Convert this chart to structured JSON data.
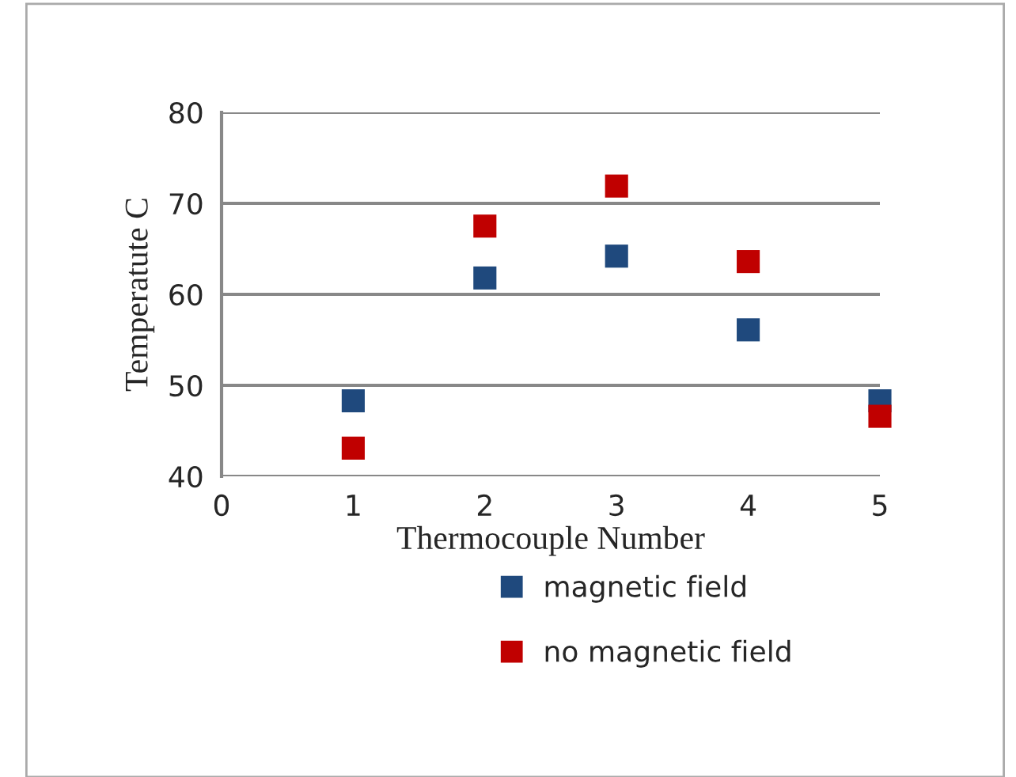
{
  "chart_data": {
    "type": "scatter",
    "xlabel": "Thermocouple Number",
    "ylabel": "Temperatute C",
    "x": [
      1,
      2,
      3,
      4,
      5
    ],
    "series": [
      {
        "name": "magnetic field",
        "color": "#1f497d",
        "values": [
          48.3,
          61.8,
          64.2,
          56.1,
          48.3
        ]
      },
      {
        "name": "no magnetic field",
        "color": "#c00000",
        "values": [
          43.1,
          67.5,
          71.9,
          63.6,
          46.6
        ]
      }
    ],
    "xlim": [
      0,
      5
    ],
    "xticks": [
      0,
      1,
      2,
      3,
      4,
      5
    ],
    "ylim": [
      40,
      80
    ],
    "yticks": [
      40,
      50,
      60,
      70,
      80
    ],
    "grid": "y",
    "legend": "bottom",
    "marker": "square"
  }
}
